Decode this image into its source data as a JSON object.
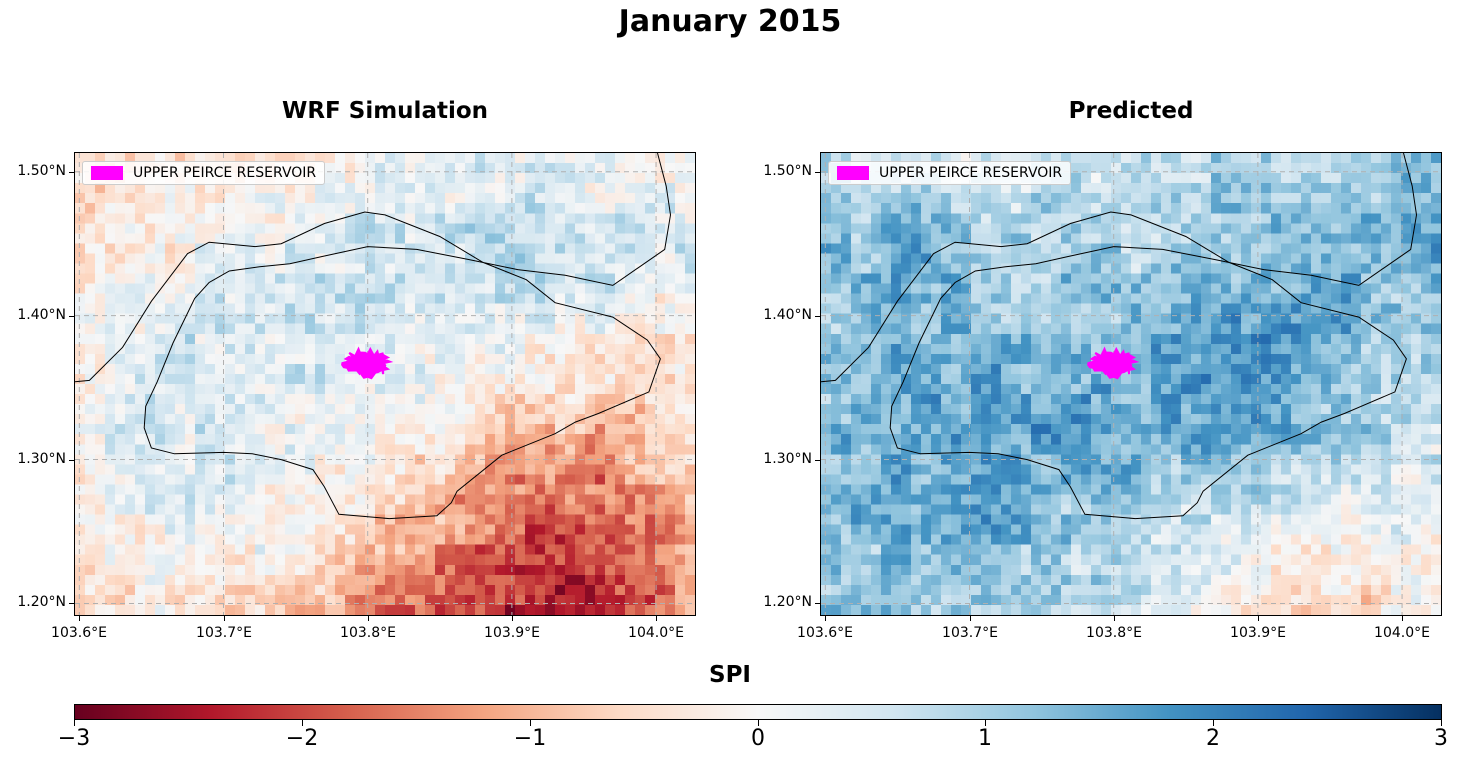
{
  "figure": {
    "title": "January 2015"
  },
  "panels": [
    {
      "title": "WRF Simulation",
      "legend_label": "UPPER PEIRCE RESERVOIR",
      "field": "wrf"
    },
    {
      "title": "Predicted",
      "legend_label": "UPPER PEIRCE RESERVOIR",
      "field": "pred"
    }
  ],
  "axes": {
    "lon_range": [
      103.597,
      104.027
    ],
    "lat_range": [
      1.192,
      1.513
    ],
    "lat_ticks": [
      {
        "value": 1.5,
        "label": "1.50°N"
      },
      {
        "value": 1.4,
        "label": "1.40°N"
      },
      {
        "value": 1.3,
        "label": "1.30°N"
      },
      {
        "value": 1.2,
        "label": "1.20°N"
      }
    ],
    "lon_ticks": [
      {
        "value": 103.6,
        "label": "103.6°E"
      },
      {
        "value": 103.7,
        "label": "103.7°E"
      },
      {
        "value": 103.8,
        "label": "103.8°E"
      },
      {
        "value": 103.9,
        "label": "103.9°E"
      },
      {
        "value": 104.0,
        "label": "104.0°E"
      }
    ],
    "gridlines": true
  },
  "colorbar": {
    "label": "SPI",
    "colormap": "RdBu",
    "range": [
      -3,
      3
    ],
    "ticks": [
      {
        "value": -3,
        "label": "−3"
      },
      {
        "value": -2,
        "label": "−2"
      },
      {
        "value": -1,
        "label": "−1"
      },
      {
        "value": 0,
        "label": "0"
      },
      {
        "value": 1,
        "label": "1"
      },
      {
        "value": 2,
        "label": "2"
      },
      {
        "value": 3,
        "label": "3"
      }
    ]
  },
  "colors": {
    "reservoir": "#ff00ff",
    "coastline": "#000000",
    "grid": "#b0b0b0"
  },
  "reservoir": {
    "center": [
      103.8,
      1.367
    ]
  },
  "coastline": {
    "outer": [
      [
        103.597,
        1.354
      ],
      [
        103.607,
        1.355
      ],
      [
        103.63,
        1.378
      ],
      [
        103.65,
        1.41
      ],
      [
        103.675,
        1.443
      ],
      [
        103.69,
        1.451
      ],
      [
        103.722,
        1.448
      ],
      [
        103.74,
        1.45
      ],
      [
        103.77,
        1.464
      ],
      [
        103.798,
        1.472
      ],
      [
        103.812,
        1.47
      ],
      [
        103.85,
        1.455
      ],
      [
        103.88,
        1.437
      ],
      [
        103.91,
        1.425
      ],
      [
        103.93,
        1.409
      ],
      [
        103.97,
        1.399
      ],
      [
        103.994,
        1.383
      ],
      [
        104.003,
        1.37
      ],
      [
        103.995,
        1.347
      ],
      [
        103.96,
        1.332
      ],
      [
        103.944,
        1.326
      ],
      [
        103.93,
        1.318
      ],
      [
        103.893,
        1.303
      ],
      [
        103.862,
        1.278
      ],
      [
        103.858,
        1.27
      ],
      [
        103.848,
        1.261
      ],
      [
        103.815,
        1.259
      ],
      [
        103.78,
        1.262
      ],
      [
        103.77,
        1.281
      ],
      [
        103.762,
        1.293
      ],
      [
        103.74,
        1.3
      ],
      [
        103.72,
        1.304
      ],
      [
        103.7,
        1.305
      ],
      [
        103.666,
        1.304
      ],
      [
        103.65,
        1.308
      ],
      [
        103.645,
        1.322
      ],
      [
        103.646,
        1.337
      ],
      [
        103.654,
        1.354
      ],
      [
        103.665,
        1.381
      ],
      [
        103.68,
        1.412
      ],
      [
        103.69,
        1.423
      ],
      [
        103.704,
        1.431
      ],
      [
        103.725,
        1.434
      ],
      [
        103.746,
        1.436
      ],
      [
        103.768,
        1.441
      ],
      [
        103.8,
        1.448
      ],
      [
        103.834,
        1.446
      ],
      [
        103.87,
        1.439
      ],
      [
        103.904,
        1.432
      ],
      [
        103.937,
        1.428
      ],
      [
        103.97,
        1.421
      ],
      [
        104.006,
        1.446
      ],
      [
        104.01,
        1.47
      ],
      [
        104.007,
        1.49
      ],
      [
        104.001,
        1.513
      ]
    ]
  },
  "map_fields": {
    "wrf": {
      "grid_size": [
        8,
        6
      ],
      "rows_north_to_south": [
        [
          -0.6,
          -0.5,
          -0.4,
          0.0,
          0.2,
          0.4,
          0.1,
          -0.4
        ],
        [
          -0.5,
          -0.2,
          0.3,
          0.6,
          0.6,
          0.8,
          0.6,
          0.5
        ],
        [
          -0.1,
          0.4,
          0.6,
          0.4,
          0.4,
          0.3,
          0.0,
          -0.5
        ],
        [
          0.1,
          0.5,
          0.3,
          0.1,
          -0.1,
          -0.8,
          -0.9,
          -0.6
        ],
        [
          -0.3,
          0.3,
          0.2,
          -0.3,
          -1.0,
          -1.8,
          -1.9,
          -1.0
        ],
        [
          -0.6,
          -0.2,
          -0.5,
          -1.3,
          -1.7,
          -2.4,
          -2.3,
          -1.2
        ]
      ]
    },
    "pred": {
      "grid_size": [
        8,
        6
      ],
      "rows_north_to_south": [
        [
          0.8,
          0.6,
          0.3,
          0.6,
          1.0,
          0.8,
          1.0,
          1.2
        ],
        [
          1.2,
          1.5,
          1.1,
          0.9,
          0.9,
          1.2,
          1.3,
          1.5
        ],
        [
          1.0,
          1.5,
          1.3,
          1.2,
          1.4,
          1.8,
          1.5,
          0.9
        ],
        [
          1.2,
          1.6,
          1.6,
          1.7,
          1.6,
          1.6,
          1.1,
          0.6
        ],
        [
          1.2,
          1.4,
          1.5,
          1.0,
          0.8,
          0.3,
          0.1,
          0.2
        ],
        [
          1.1,
          1.2,
          1.0,
          0.7,
          0.2,
          -0.3,
          -0.8,
          0.0
        ]
      ]
    }
  }
}
